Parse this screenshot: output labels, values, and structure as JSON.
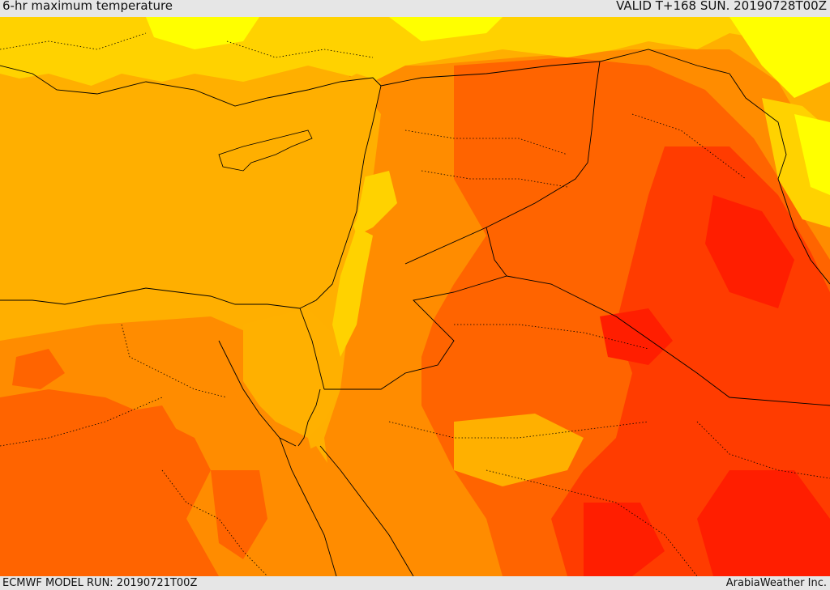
{
  "header": {
    "title": "6-hr maximum temperature",
    "valid": "VALID T+168 SUN. 20190728T00Z"
  },
  "footer": {
    "model_run": "ECMWF MODEL RUN: 20190721T00Z",
    "brand": "ArabiaWeather Inc."
  },
  "map": {
    "palette": {
      "yellow": "#ffff00",
      "light_orange": "#ffd200",
      "amber": "#ffb000",
      "orange": "#ff8c00",
      "dark_orange": "#ff6400",
      "red_orange": "#ff3c00",
      "red": "#ff1e00",
      "sea_amber": "#ffaf00"
    },
    "border_color": "#000000"
  }
}
